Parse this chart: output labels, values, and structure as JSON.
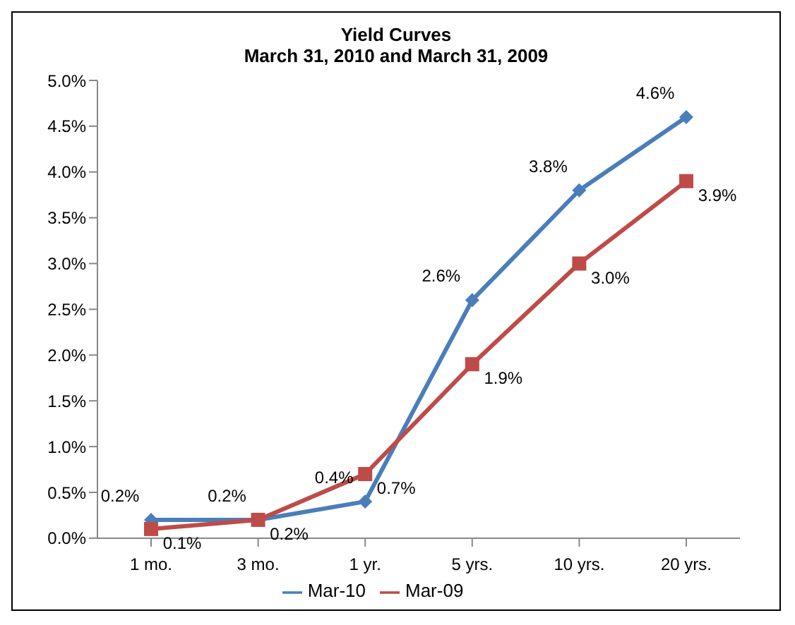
{
  "chart_data": {
    "type": "line",
    "title": "Yield Curves",
    "subtitle": "March 31, 2010 and March 31, 2009",
    "categories": [
      "1 mo.",
      "3 mo.",
      "1 yr.",
      "5 yrs.",
      "10 yrs.",
      "20 yrs."
    ],
    "series": [
      {
        "name": "Mar-10",
        "color": "#4a7ebb",
        "marker": "diamond",
        "values": [
          0.2,
          0.2,
          0.4,
          2.6,
          3.8,
          4.6
        ],
        "value_labels": [
          "0.2%",
          "0.2%",
          "0.4%",
          "2.6%",
          "3.8%",
          "4.6%"
        ]
      },
      {
        "name": "Mar-09",
        "color": "#be4b48",
        "marker": "square",
        "values": [
          0.1,
          0.2,
          0.7,
          1.9,
          3.0,
          3.9
        ],
        "value_labels": [
          "0.1%",
          "0.2%",
          "0.7%",
          "1.9%",
          "3.0%",
          "3.9%"
        ]
      }
    ],
    "ylim": [
      0,
      5
    ],
    "yticks": [
      {
        "value": 0,
        "label": "0.0%"
      },
      {
        "value": 0.5,
        "label": "0.5%"
      },
      {
        "value": 1,
        "label": "1.0%"
      },
      {
        "value": 1.5,
        "label": "1.5%"
      },
      {
        "value": 2,
        "label": "2.0%"
      },
      {
        "value": 2.5,
        "label": "2.5%"
      },
      {
        "value": 3,
        "label": "3.0%"
      },
      {
        "value": 3.5,
        "label": "3.5%"
      },
      {
        "value": 4,
        "label": "4.0%"
      },
      {
        "value": 4.5,
        "label": "4.5%"
      },
      {
        "value": 5,
        "label": "5.0%"
      }
    ],
    "grid": false,
    "legend": "bottom"
  }
}
